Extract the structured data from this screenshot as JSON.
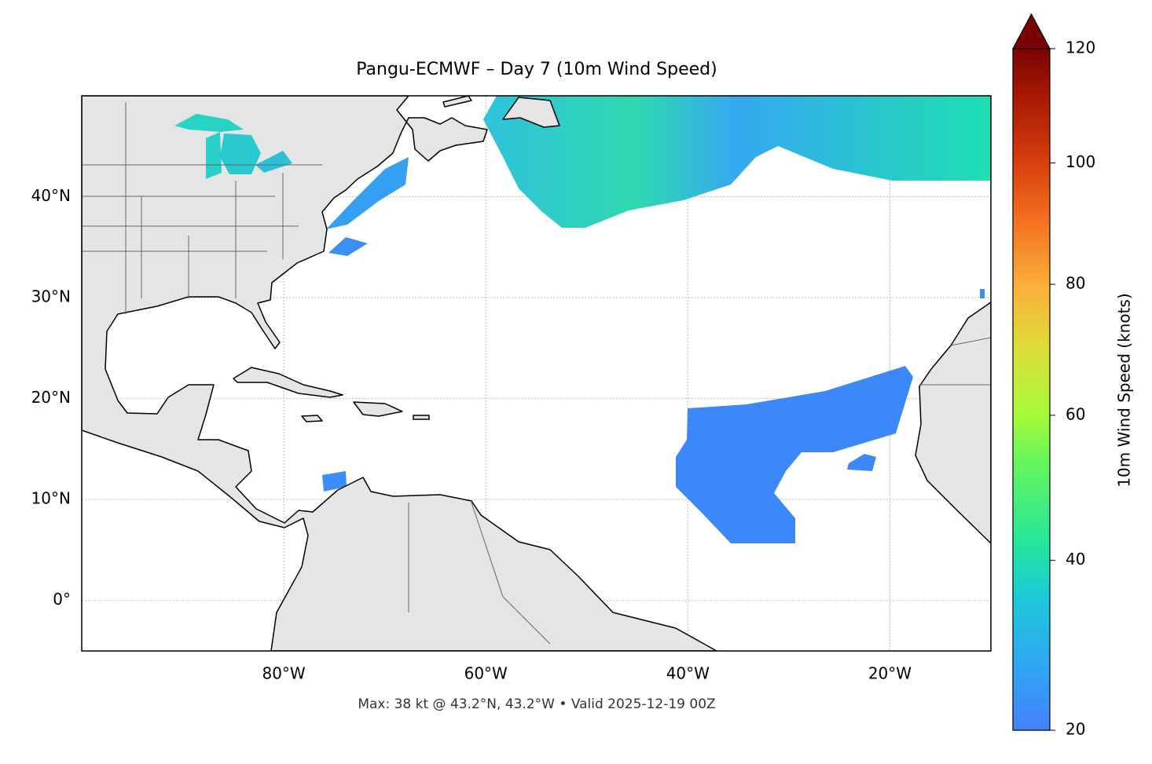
{
  "title": "Pangu-ECMWF – Day 7 (10m Wind Speed)",
  "map": {
    "xlim": [
      -100,
      -10
    ],
    "ylim": [
      -5,
      50
    ],
    "xticks": [
      {
        "value": -80,
        "label": "80°W"
      },
      {
        "value": -60,
        "label": "60°W"
      },
      {
        "value": -40,
        "label": "40°W"
      },
      {
        "value": -20,
        "label": "20°W"
      }
    ],
    "yticks": [
      {
        "value": 0,
        "label": "0°"
      },
      {
        "value": 10,
        "label": "10°N"
      },
      {
        "value": 20,
        "label": "20°N"
      },
      {
        "value": 30,
        "label": "30°N"
      },
      {
        "value": 40,
        "label": "40°N"
      }
    ],
    "grid": true
  },
  "colorbar": {
    "label": "10m Wind Speed (knots)",
    "clim": [
      20,
      120
    ],
    "ticks": [
      20,
      40,
      60,
      80,
      100,
      120
    ],
    "extend": "max"
  },
  "footer": "Max: 38 kt @ 43.2°N, 43.2°W • Valid 2025-12-19 00Z"
}
